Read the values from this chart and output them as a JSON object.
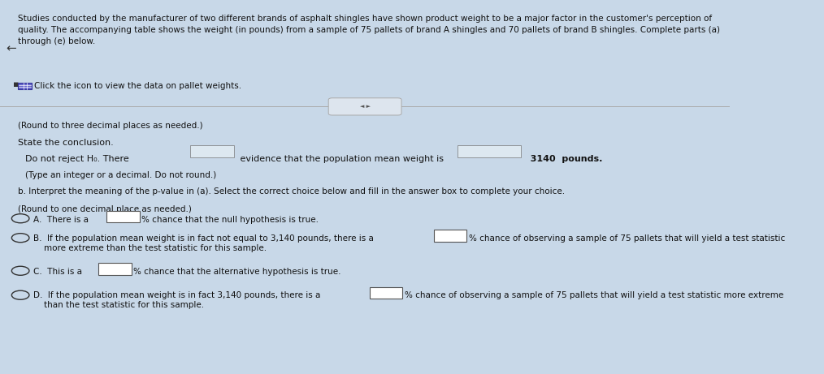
{
  "bg_color": "#c8d8e8",
  "title_text": "Studies conducted by the manufacturer of two different brands of asphalt shingles have shown product weight to be a major factor in the customer's perception of\nquality. The accompanying table shows the weight (in pounds) from a sample of 75 pallets of brand A shingles and 70 pallets of brand B shingles. Complete parts (a)\nthrough (e) below.",
  "click_text": "Click the icon to view the data on pallet weights.",
  "round3_text": "(Round to three decimal places as needed.)",
  "state_conclusion_text": "State the conclusion.",
  "type_text": "(Type an integer or a decimal. Do not round.)",
  "part_b_text": "b. Interpret the meaning of the p-value in (a). Select the correct choice below and fill in the answer box to complete your choice.",
  "round1_text": "(Round to one decimal place as needed.)"
}
